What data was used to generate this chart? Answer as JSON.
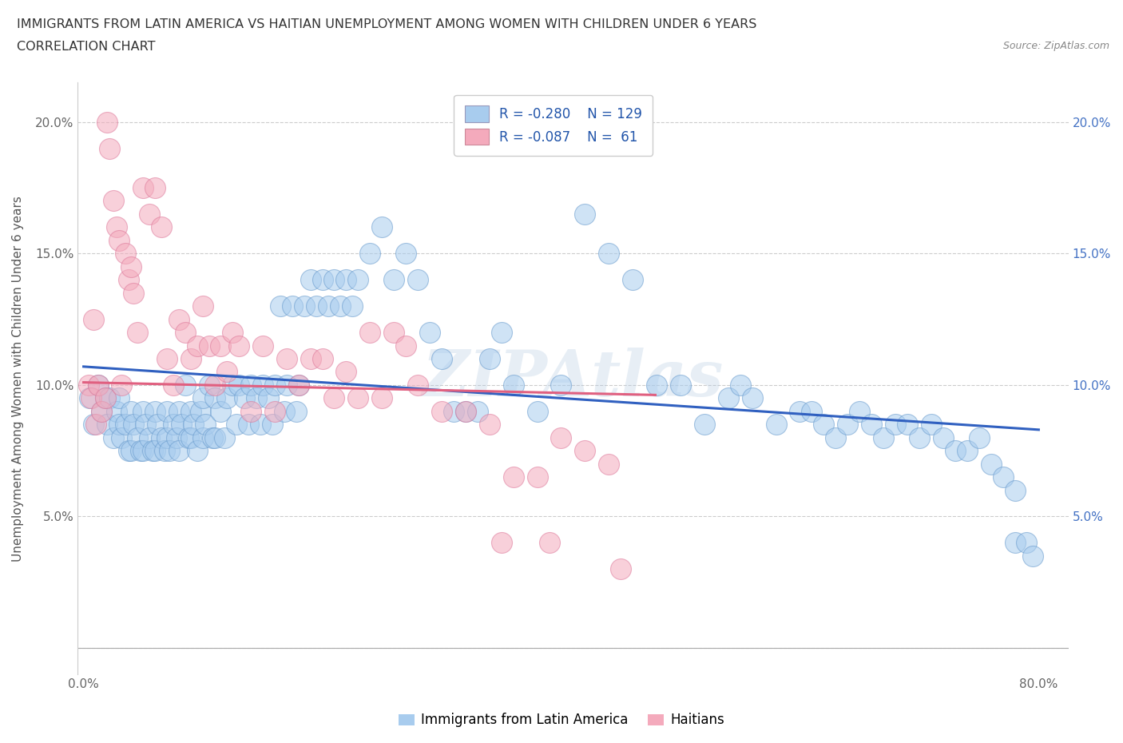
{
  "title_line1": "IMMIGRANTS FROM LATIN AMERICA VS HAITIAN UNEMPLOYMENT AMONG WOMEN WITH CHILDREN UNDER 6 YEARS",
  "title_line2": "CORRELATION CHART",
  "source": "Source: ZipAtlas.com",
  "ylabel": "Unemployment Among Women with Children Under 6 years",
  "x_ticks": [
    0.0,
    0.1,
    0.2,
    0.3,
    0.4,
    0.5,
    0.6,
    0.7,
    0.8
  ],
  "x_tick_labels": [
    "0.0%",
    "",
    "",
    "",
    "",
    "",
    "",
    "",
    "80.0%"
  ],
  "y_ticks": [
    0.0,
    0.05,
    0.1,
    0.15,
    0.2
  ],
  "y_tick_labels_left": [
    "",
    "5.0%",
    "10.0%",
    "15.0%",
    "20.0%"
  ],
  "y_tick_labels_right": [
    "",
    "5.0%",
    "10.0%",
    "15.0%",
    "20.0%"
  ],
  "R_blue": -0.28,
  "N_blue": 129,
  "R_pink": -0.087,
  "N_pink": 61,
  "blue_color": "#A8CCEE",
  "pink_color": "#F4AABC",
  "blue_line_color": "#3060C0",
  "pink_line_color": "#E06080",
  "watermark": "ZIPAtlas",
  "blue_intercept": 0.107,
  "blue_slope": -0.03,
  "pink_intercept": 0.101,
  "pink_slope": -0.01,
  "blue_scatter_x": [
    0.005,
    0.008,
    0.012,
    0.015,
    0.018,
    0.02,
    0.022,
    0.025,
    0.028,
    0.03,
    0.03,
    0.032,
    0.035,
    0.038,
    0.04,
    0.04,
    0.042,
    0.045,
    0.048,
    0.05,
    0.05,
    0.052,
    0.055,
    0.058,
    0.06,
    0.06,
    0.062,
    0.065,
    0.068,
    0.07,
    0.07,
    0.072,
    0.075,
    0.078,
    0.08,
    0.08,
    0.082,
    0.085,
    0.088,
    0.09,
    0.09,
    0.092,
    0.095,
    0.098,
    0.1,
    0.1,
    0.102,
    0.105,
    0.108,
    0.11,
    0.11,
    0.115,
    0.118,
    0.12,
    0.125,
    0.128,
    0.13,
    0.135,
    0.138,
    0.14,
    0.145,
    0.148,
    0.15,
    0.155,
    0.158,
    0.16,
    0.165,
    0.168,
    0.17,
    0.175,
    0.178,
    0.18,
    0.185,
    0.19,
    0.195,
    0.2,
    0.205,
    0.21,
    0.215,
    0.22,
    0.225,
    0.23,
    0.24,
    0.25,
    0.26,
    0.27,
    0.28,
    0.29,
    0.3,
    0.31,
    0.32,
    0.33,
    0.34,
    0.35,
    0.36,
    0.38,
    0.4,
    0.42,
    0.44,
    0.46,
    0.48,
    0.5,
    0.52,
    0.54,
    0.55,
    0.56,
    0.58,
    0.6,
    0.61,
    0.62,
    0.63,
    0.64,
    0.65,
    0.66,
    0.67,
    0.68,
    0.69,
    0.7,
    0.71,
    0.72,
    0.73,
    0.74,
    0.75,
    0.76,
    0.77,
    0.78,
    0.78,
    0.79,
    0.795
  ],
  "blue_scatter_y": [
    0.095,
    0.085,
    0.1,
    0.09,
    0.095,
    0.085,
    0.095,
    0.08,
    0.09,
    0.085,
    0.095,
    0.08,
    0.085,
    0.075,
    0.09,
    0.075,
    0.085,
    0.08,
    0.075,
    0.09,
    0.075,
    0.085,
    0.08,
    0.075,
    0.09,
    0.075,
    0.085,
    0.08,
    0.075,
    0.09,
    0.08,
    0.075,
    0.085,
    0.08,
    0.09,
    0.075,
    0.085,
    0.1,
    0.08,
    0.09,
    0.08,
    0.085,
    0.075,
    0.09,
    0.095,
    0.08,
    0.085,
    0.1,
    0.08,
    0.095,
    0.08,
    0.09,
    0.08,
    0.095,
    0.1,
    0.085,
    0.1,
    0.095,
    0.085,
    0.1,
    0.095,
    0.085,
    0.1,
    0.095,
    0.085,
    0.1,
    0.13,
    0.09,
    0.1,
    0.13,
    0.09,
    0.1,
    0.13,
    0.14,
    0.13,
    0.14,
    0.13,
    0.14,
    0.13,
    0.14,
    0.13,
    0.14,
    0.15,
    0.16,
    0.14,
    0.15,
    0.14,
    0.12,
    0.11,
    0.09,
    0.09,
    0.09,
    0.11,
    0.12,
    0.1,
    0.09,
    0.1,
    0.165,
    0.15,
    0.14,
    0.1,
    0.1,
    0.085,
    0.095,
    0.1,
    0.095,
    0.085,
    0.09,
    0.09,
    0.085,
    0.08,
    0.085,
    0.09,
    0.085,
    0.08,
    0.085,
    0.085,
    0.08,
    0.085,
    0.08,
    0.075,
    0.075,
    0.08,
    0.07,
    0.065,
    0.06,
    0.04,
    0.04,
    0.035
  ],
  "pink_scatter_x": [
    0.004,
    0.006,
    0.008,
    0.01,
    0.012,
    0.015,
    0.018,
    0.02,
    0.022,
    0.025,
    0.028,
    0.03,
    0.032,
    0.035,
    0.038,
    0.04,
    0.042,
    0.045,
    0.05,
    0.055,
    0.06,
    0.065,
    0.07,
    0.075,
    0.08,
    0.085,
    0.09,
    0.095,
    0.1,
    0.105,
    0.11,
    0.115,
    0.12,
    0.125,
    0.13,
    0.14,
    0.15,
    0.16,
    0.17,
    0.18,
    0.19,
    0.2,
    0.21,
    0.22,
    0.23,
    0.24,
    0.25,
    0.26,
    0.27,
    0.28,
    0.3,
    0.32,
    0.34,
    0.35,
    0.36,
    0.38,
    0.39,
    0.4,
    0.42,
    0.44,
    0.45
  ],
  "pink_scatter_y": [
    0.1,
    0.095,
    0.125,
    0.085,
    0.1,
    0.09,
    0.095,
    0.2,
    0.19,
    0.17,
    0.16,
    0.155,
    0.1,
    0.15,
    0.14,
    0.145,
    0.135,
    0.12,
    0.175,
    0.165,
    0.175,
    0.16,
    0.11,
    0.1,
    0.125,
    0.12,
    0.11,
    0.115,
    0.13,
    0.115,
    0.1,
    0.115,
    0.105,
    0.12,
    0.115,
    0.09,
    0.115,
    0.09,
    0.11,
    0.1,
    0.11,
    0.11,
    0.095,
    0.105,
    0.095,
    0.12,
    0.095,
    0.12,
    0.115,
    0.1,
    0.09,
    0.09,
    0.085,
    0.04,
    0.065,
    0.065,
    0.04,
    0.08,
    0.075,
    0.07,
    0.03
  ]
}
